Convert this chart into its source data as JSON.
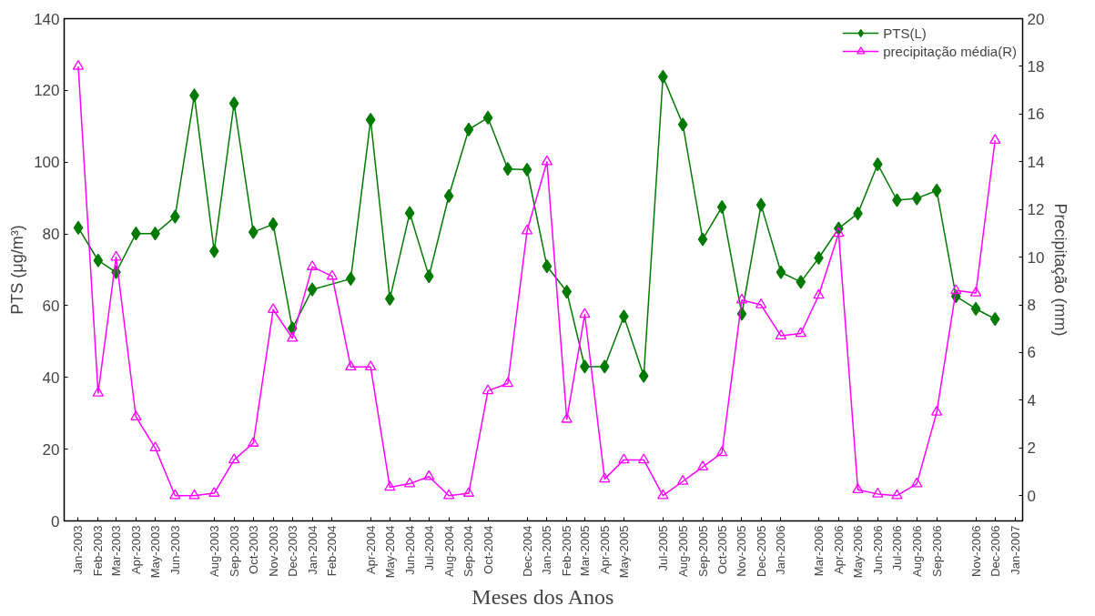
{
  "chart_data": {
    "type": "line",
    "xlabel": "Meses dos Anos",
    "ylabel": "PTS (μg/m³)",
    "y2label": "Precipitação (mm)",
    "xlim": [
      "2002-12-10",
      "2007-01-13"
    ],
    "xticks": [
      {
        "value": "2003-01",
        "label": "Jan-2003"
      },
      {
        "value": "2003-02",
        "label": "Feb-2003"
      },
      {
        "value": "2003-03",
        "label": "Mar-2003"
      },
      {
        "value": "2003-04",
        "label": "Apr-2003"
      },
      {
        "value": "2003-05",
        "label": "May-2003"
      },
      {
        "value": "2003-06",
        "label": "Jun-2003"
      },
      {
        "value": "2003-08",
        "label": "Aug-2003"
      },
      {
        "value": "2003-09",
        "label": "Sep-2003"
      },
      {
        "value": "2003-10",
        "label": "Oct-2003"
      },
      {
        "value": "2003-11",
        "label": "Nov-2003"
      },
      {
        "value": "2003-12",
        "label": "Dec-2003"
      },
      {
        "value": "2004-01",
        "label": "Jan-2004"
      },
      {
        "value": "2004-02",
        "label": "Feb-2004"
      },
      {
        "value": "2004-04",
        "label": "Apr-2004"
      },
      {
        "value": "2004-05",
        "label": "May-2004"
      },
      {
        "value": "2004-06",
        "label": "Jun-2004"
      },
      {
        "value": "2004-07",
        "label": "Jul-2004"
      },
      {
        "value": "2004-08",
        "label": "Aug-2004"
      },
      {
        "value": "2004-09",
        "label": "Sep-2004"
      },
      {
        "value": "2004-10",
        "label": "Oct-2004"
      },
      {
        "value": "2004-12",
        "label": "Dec-2004"
      },
      {
        "value": "2005-01",
        "label": "Jan-2005"
      },
      {
        "value": "2005-02",
        "label": "Feb-2005"
      },
      {
        "value": "2005-03",
        "label": "Mar-2005"
      },
      {
        "value": "2005-04",
        "label": "Apr-2005"
      },
      {
        "value": "2005-05",
        "label": "May-2005"
      },
      {
        "value": "2005-07",
        "label": "Jul-2005"
      },
      {
        "value": "2005-08",
        "label": "Aug-2005"
      },
      {
        "value": "2005-09",
        "label": "Sep-2005"
      },
      {
        "value": "2005-10",
        "label": "Oct-2005"
      },
      {
        "value": "2005-11",
        "label": "Nov-2005"
      },
      {
        "value": "2005-12",
        "label": "Dec-2005"
      },
      {
        "value": "2006-01",
        "label": "Jan-2006"
      },
      {
        "value": "2006-03",
        "label": "Mar-2006"
      },
      {
        "value": "2006-04",
        "label": "Apr-2006"
      },
      {
        "value": "2006-05",
        "label": "May-2006"
      },
      {
        "value": "2006-06",
        "label": "Jun-2006"
      },
      {
        "value": "2006-07",
        "label": "Jul-2006"
      },
      {
        "value": "2006-08",
        "label": "Aug-2006"
      },
      {
        "value": "2006-09",
        "label": "Sep-2006"
      },
      {
        "value": "2006-11",
        "label": "Nov-2006"
      },
      {
        "value": "2006-12",
        "label": "Dec-2006"
      },
      {
        "value": "2007-01",
        "label": "Jan-2007"
      }
    ],
    "ylim": [
      0,
      140
    ],
    "yticks": [
      0,
      20,
      40,
      60,
      80,
      100,
      120,
      140
    ],
    "y2lim": [
      -1.06,
      20
    ],
    "y2ticks": [
      0,
      2,
      4,
      6,
      8,
      10,
      12,
      14,
      16,
      18,
      20
    ],
    "legend": "top right",
    "series": [
      {
        "name": "PTS(L)",
        "color": "#007a00",
        "marker": "diamond",
        "x": [
          "2003-01",
          "2003-02",
          "2003-03",
          "2003-04",
          "2003-05",
          "2003-06",
          "2003-07",
          "2003-08",
          "2003-09",
          "2003-10",
          "2003-11",
          "2003-12",
          "2004-01",
          "2004-03",
          "2004-04",
          "2004-05",
          "2004-06",
          "2004-07",
          "2004-08",
          "2004-09",
          "2004-10",
          "2004-11",
          "2004-12",
          "2005-01",
          "2005-02",
          "2005-03",
          "2005-04",
          "2005-05",
          "2005-06",
          "2005-07",
          "2005-08",
          "2005-09",
          "2005-10",
          "2005-11",
          "2005-12",
          "2006-01",
          "2006-02",
          "2006-03",
          "2006-04",
          "2006-05",
          "2006-06",
          "2006-07",
          "2006-08",
          "2006-09",
          "2006-10",
          "2006-11",
          "2006-12"
        ],
        "values": [
          81.7,
          72.6,
          69.3,
          80.1,
          80.1,
          84.8,
          118.6,
          75.2,
          116.4,
          80.5,
          82.7,
          53.7,
          64.5,
          67.5,
          111.8,
          61.9,
          85.8,
          68.2,
          90.6,
          109.1,
          112.4,
          98.1,
          97.9,
          71.0,
          63.9,
          43.0,
          43.0,
          57.0,
          40.4,
          123.8,
          110.5,
          78.5,
          87.5,
          57.7,
          88.1,
          69.3,
          66.6,
          73.3,
          81.5,
          85.7,
          99.4,
          89.4,
          89.9,
          92.1,
          62.6,
          59.1,
          56.3
        ]
      },
      {
        "name": "precipitação média(R)",
        "color": "#ff00ff",
        "marker": "triangle",
        "axis": "y2",
        "x": [
          "2003-01",
          "2003-02",
          "2003-03",
          "2003-04",
          "2003-05",
          "2003-06",
          "2003-07",
          "2003-08",
          "2003-09",
          "2003-10",
          "2003-11",
          "2003-12",
          "2004-01",
          "2004-02",
          "2004-03",
          "2004-04",
          "2004-05",
          "2004-06",
          "2004-07",
          "2004-08",
          "2004-09",
          "2004-10",
          "2004-11",
          "2004-12",
          "2005-01",
          "2005-02",
          "2005-03",
          "2005-04",
          "2005-05",
          "2005-06",
          "2005-07",
          "2005-08",
          "2005-09",
          "2005-10",
          "2005-11",
          "2005-12",
          "2006-01",
          "2006-02",
          "2006-03",
          "2006-04",
          "2006-05",
          "2006-06",
          "2006-07",
          "2006-08",
          "2006-09",
          "2006-10",
          "2006-11",
          "2006-12"
        ],
        "values": [
          18.0,
          4.3,
          10.0,
          3.3,
          2.0,
          0.0,
          0.0,
          0.1,
          1.5,
          2.2,
          7.8,
          6.6,
          9.6,
          9.2,
          5.4,
          5.4,
          0.35,
          0.5,
          0.8,
          0.0,
          0.1,
          4.4,
          4.7,
          11.1,
          14.0,
          3.2,
          7.6,
          0.7,
          1.5,
          1.5,
          0.0,
          0.6,
          1.2,
          1.8,
          8.2,
          8.0,
          6.7,
          6.8,
          8.4,
          11.0,
          0.25,
          0.07,
          0.0,
          0.5,
          3.5,
          8.6,
          8.5,
          14.9
        ]
      }
    ]
  }
}
